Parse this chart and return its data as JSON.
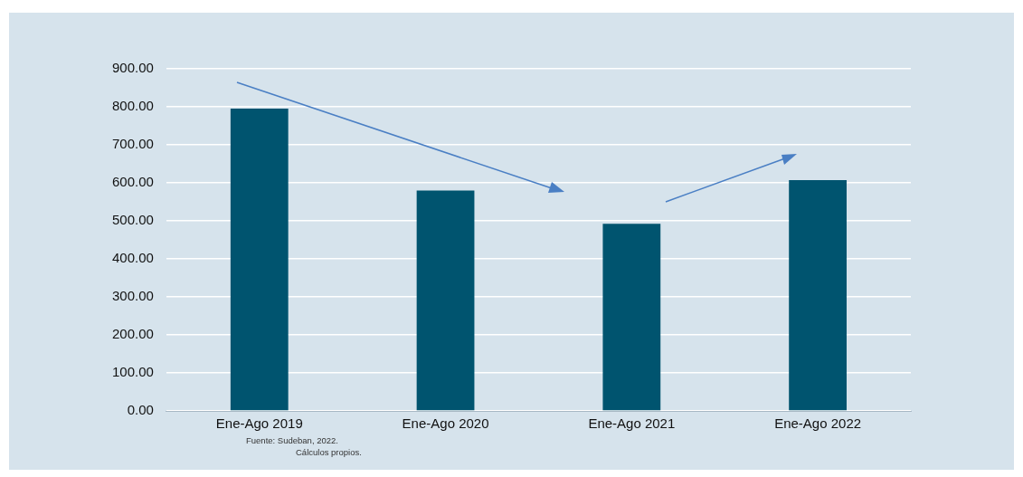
{
  "chart_data": {
    "type": "bar",
    "categories": [
      "Ene-Ago 2019",
      "Ene-Ago 2020",
      "Ene-Ago 2021",
      "Ene-Ago 2022"
    ],
    "values": [
      795,
      580,
      492,
      607
    ],
    "color": "#00546f",
    "ylim": [
      0,
      900
    ],
    "yticks": [
      {
        "value": 0,
        "label": "0.00"
      },
      {
        "value": 100,
        "label": "100.00"
      },
      {
        "value": 200,
        "label": "200.00"
      },
      {
        "value": 300,
        "label": "300.00"
      },
      {
        "value": 400,
        "label": "400.00"
      },
      {
        "value": 500,
        "label": "500.00"
      },
      {
        "value": 600,
        "label": "600.00"
      },
      {
        "value": 700,
        "label": "700.00"
      },
      {
        "value": 800,
        "label": "800.00"
      },
      {
        "value": 900,
        "label": "900.00"
      }
    ],
    "grid": "y",
    "legend": false,
    "annotations": [
      "Fuente: Sudeban, 2022.",
      "Cálculos propios."
    ]
  }
}
